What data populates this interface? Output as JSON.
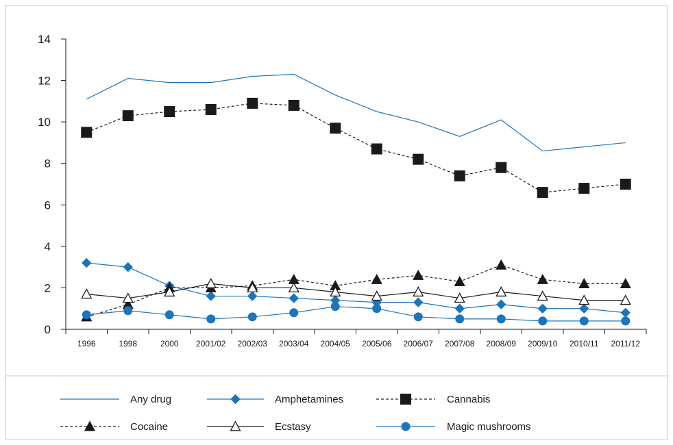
{
  "chart_data": {
    "type": "line",
    "title": "",
    "xlabel": "",
    "ylabel": "",
    "ylim": [
      0,
      14
    ],
    "yticks": [
      0,
      2,
      4,
      6,
      8,
      10,
      12,
      14
    ],
    "categories": [
      "1996",
      "1998",
      "2000",
      "2001/02",
      "2002/03",
      "2003/04",
      "2004/05",
      "2005/06",
      "2006/07",
      "2007/08",
      "2008/09",
      "2009/10",
      "2010/11",
      "2011/12"
    ],
    "grid": false,
    "legend_position": "bottom",
    "series": [
      {
        "name": "Any drug",
        "color": "#1b75bc",
        "dash": "solid",
        "marker": "none",
        "values": [
          11.1,
          12.1,
          11.9,
          11.9,
          12.2,
          12.3,
          11.3,
          10.5,
          10.0,
          9.3,
          10.1,
          8.6,
          8.8,
          9.0
        ]
      },
      {
        "name": "Amphetamines",
        "color": "#1b75bc",
        "dash": "solid",
        "marker": "diamond",
        "values": [
          3.2,
          3.0,
          2.1,
          1.6,
          1.6,
          1.5,
          1.4,
          1.3,
          1.3,
          1.0,
          1.2,
          1.0,
          1.0,
          0.8
        ]
      },
      {
        "name": "Cannabis",
        "color": "#1a1a1a",
        "dash": "dashed",
        "marker": "square",
        "values": [
          9.5,
          10.3,
          10.5,
          10.6,
          10.9,
          10.8,
          9.7,
          8.7,
          8.2,
          7.4,
          7.8,
          6.6,
          6.8,
          7.0
        ]
      },
      {
        "name": "Cocaine",
        "color": "#1a1a1a",
        "dash": "dashed",
        "marker": "triangle",
        "values": [
          0.6,
          1.2,
          2.0,
          2.0,
          2.1,
          2.4,
          2.1,
          2.4,
          2.6,
          2.3,
          3.1,
          2.4,
          2.2,
          2.2
        ]
      },
      {
        "name": "Ecstasy",
        "color": "#1a1a1a",
        "dash": "solid",
        "marker": "open-triangle",
        "values": [
          1.7,
          1.5,
          1.8,
          2.2,
          2.0,
          2.0,
          1.8,
          1.6,
          1.8,
          1.5,
          1.8,
          1.6,
          1.4,
          1.4
        ]
      },
      {
        "name": "Magic mushrooms",
        "color": "#1b75bc",
        "dash": "solid",
        "marker": "circle",
        "values": [
          0.7,
          0.9,
          0.7,
          0.5,
          0.6,
          0.8,
          1.1,
          1.0,
          0.6,
          0.5,
          0.5,
          0.4,
          0.4,
          0.4
        ]
      }
    ]
  }
}
